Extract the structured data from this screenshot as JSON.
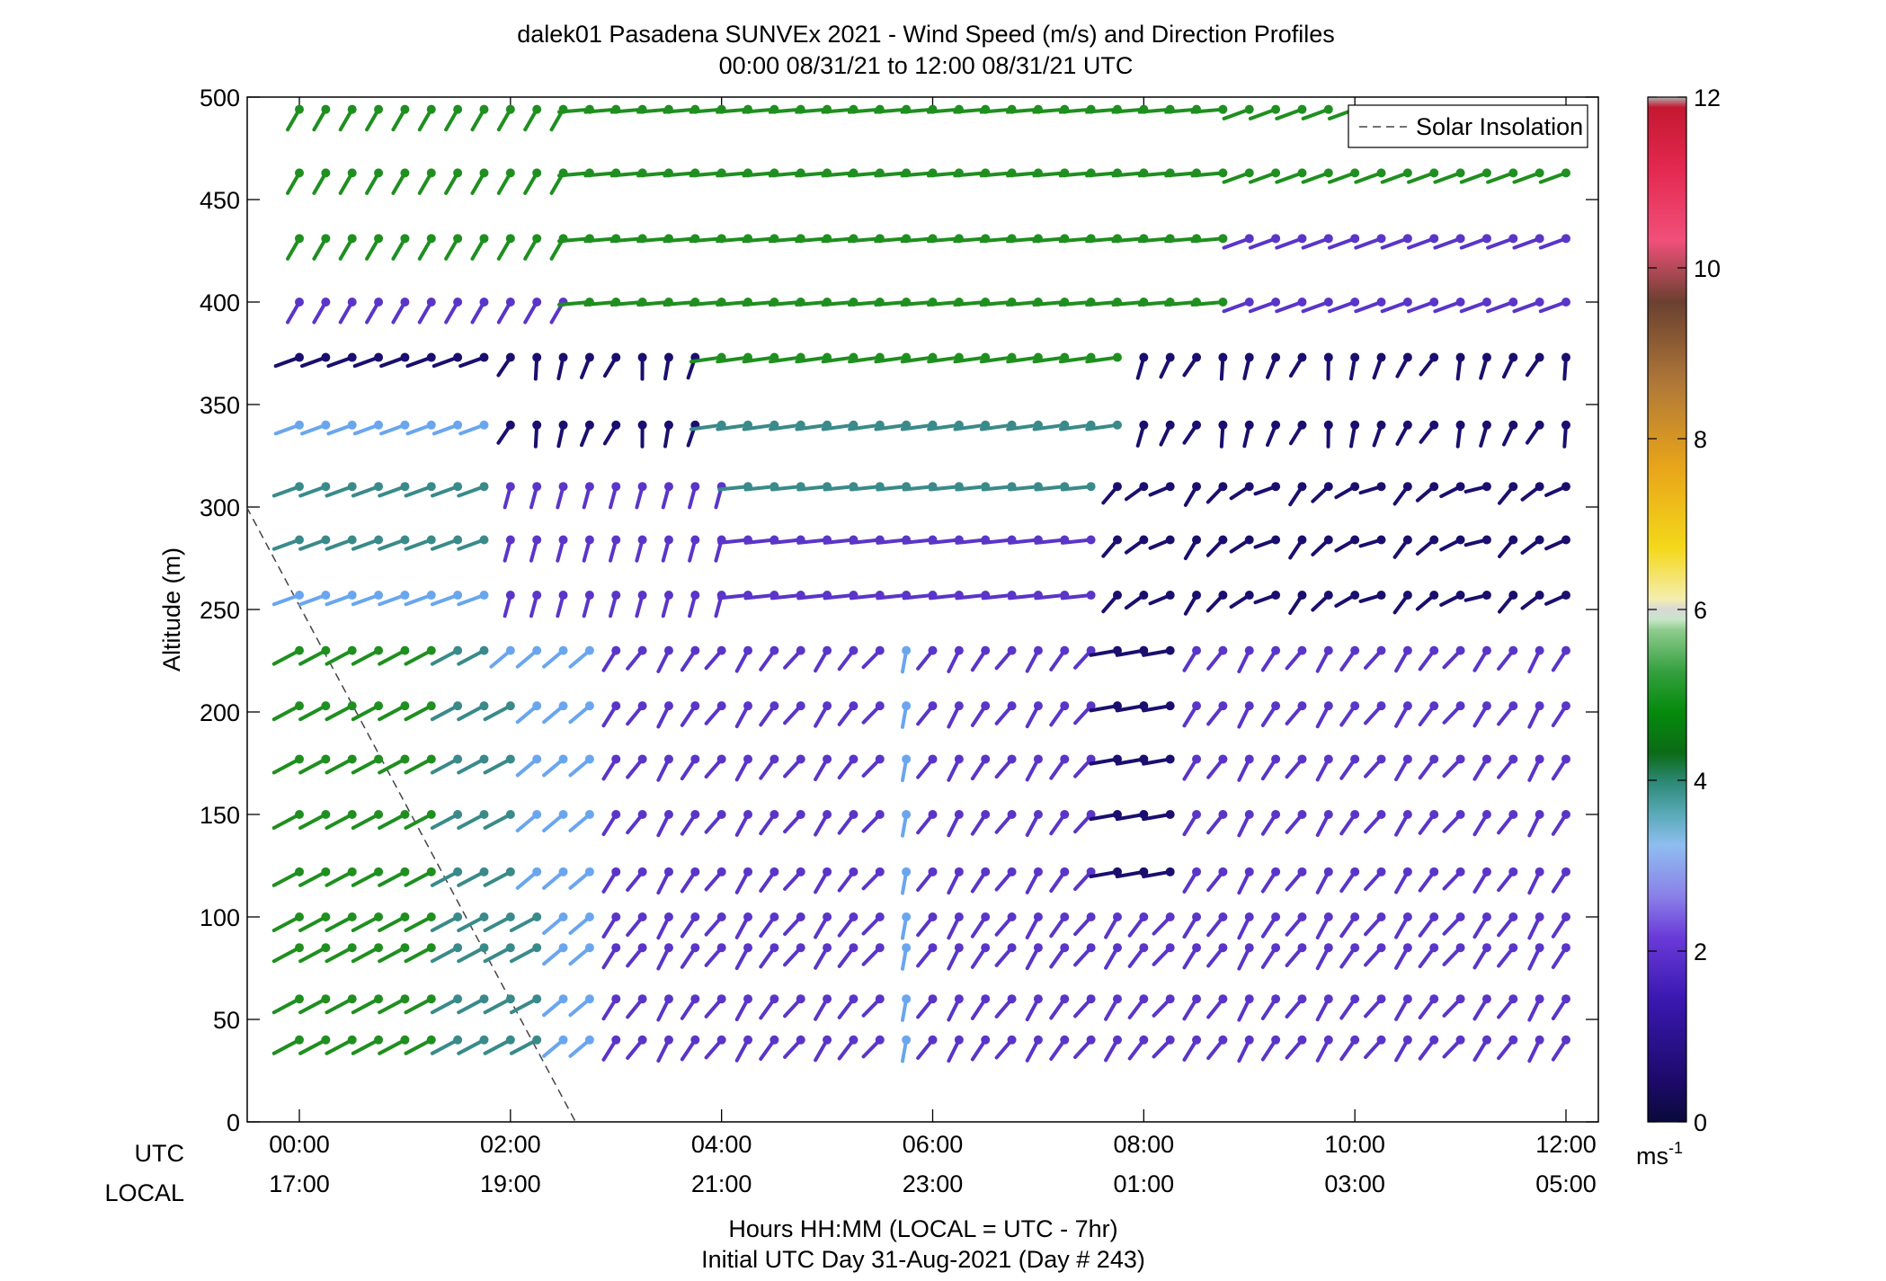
{
  "chart_data": {
    "type": "barb",
    "title": "dalek01 Pasadena SUNVEx 2021 - Wind Speed (m/s) and Direction Profiles",
    "subtitle": "00:00 08/31/21 to 12:00 08/31/21  UTC",
    "ylabel": "Altitude (m)",
    "ylim": [
      0,
      500
    ],
    "yticks": [
      "0",
      "50",
      "100",
      "150",
      "200",
      "250",
      "300",
      "350",
      "400",
      "450",
      "500"
    ],
    "x_utc_ticks": [
      "00:00",
      "02:00",
      "04:00",
      "06:00",
      "08:00",
      "10:00",
      "12:00"
    ],
    "x_local_ticks": [
      "17:00",
      "19:00",
      "21:00",
      "23:00",
      "01:00",
      "03:00",
      "05:00"
    ],
    "x_row_labels": [
      "UTC",
      "LOCAL"
    ],
    "xlabel": "Hours HH:MM  (LOCAL = UTC - 7hr)",
    "xlabel2": "Initial UTC Day 31-Aug-2021 (Day # 243)",
    "legend": {
      "label": "Solar Insolation",
      "position": "top-right",
      "style": "dashed"
    },
    "solar_line": {
      "x": [
        "-00:30",
        "02:37"
      ],
      "y": [
        300,
        0
      ]
    },
    "colorbar": {
      "ticks": [
        "0",
        "2",
        "4",
        "6",
        "8",
        "10",
        "12"
      ],
      "unit": "ms",
      "unit_sup": "-1",
      "range": [
        0,
        12
      ]
    },
    "altitudes": [
      40,
      60,
      85,
      100,
      122,
      150,
      177,
      203,
      230,
      257,
      284,
      310,
      340,
      373,
      400,
      431,
      463,
      494
    ],
    "time_step_minutes": 15,
    "time_start": "00:00",
    "time_end": "12:00",
    "colors": {
      "purple": "#5a35c8",
      "dark_blue": "#1a0f6e",
      "light_blue": "#6aa6ee",
      "teal": "#3a8a8a",
      "green": "#1f8f1f",
      "dark_green": "#0c6b0c"
    }
  }
}
